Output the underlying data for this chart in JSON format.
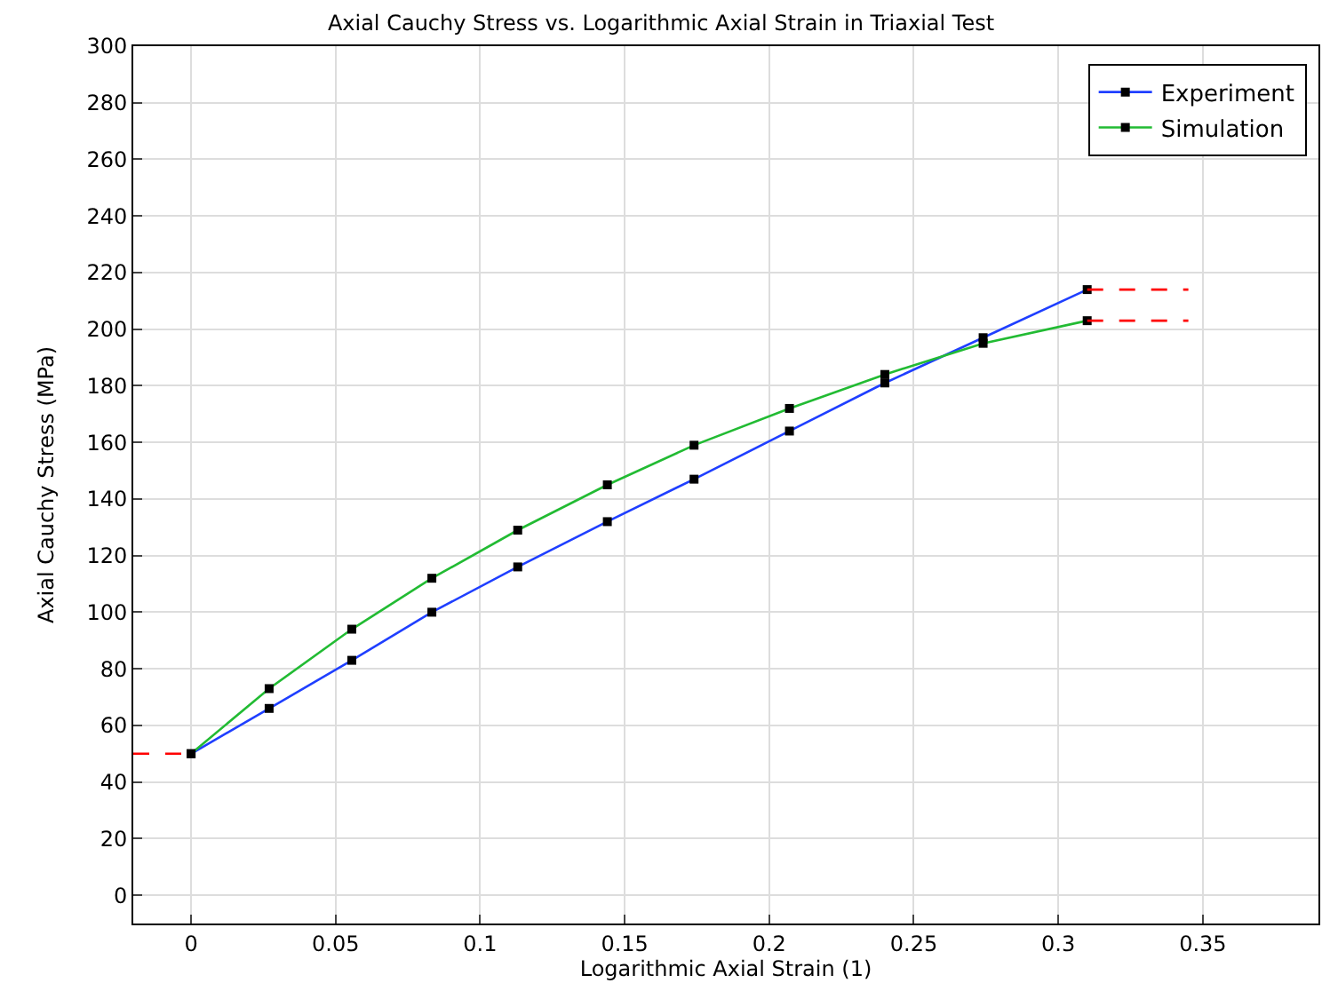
{
  "chart_data": {
    "type": "line",
    "title": "Axial Cauchy Stress vs. Logarithmic Axial Strain in Triaxial Test",
    "xlabel": "Logarithmic Axial Strain (1)",
    "ylabel": "Axial Cauchy Stress (MPa)",
    "xlim": [
      -0.02,
      0.39
    ],
    "ylim": [
      -10,
      300
    ],
    "xticks": [
      0,
      0.05,
      0.1,
      0.15,
      0.2,
      0.25,
      0.3,
      0.35
    ],
    "yticks": [
      0,
      20,
      40,
      60,
      80,
      100,
      120,
      140,
      160,
      180,
      200,
      220,
      240,
      260,
      280,
      300
    ],
    "grid": true,
    "legend": "top right",
    "marker": "square",
    "line_style": "solid",
    "series": [
      {
        "name": "Experiment",
        "color": "#1f3fff",
        "x": [
          0,
          0.027,
          0.0556,
          0.0833,
          0.113,
          0.144,
          0.174,
          0.207,
          0.24,
          0.274,
          0.31
        ],
        "values": [
          50,
          66,
          83,
          100,
          116,
          132,
          147,
          164,
          181,
          197,
          214
        ]
      },
      {
        "name": "Simulation",
        "color": "#22bb33",
        "x": [
          0,
          0.027,
          0.0556,
          0.0833,
          0.113,
          0.144,
          0.174,
          0.207,
          0.24,
          0.274,
          0.31
        ],
        "values": [
          50,
          73,
          94,
          112,
          129,
          145,
          159,
          172,
          184,
          195,
          203
        ]
      },
      {
        "color": "#ff0000",
        "x": [
          -0.02,
          0
        ],
        "values": [
          50,
          50
        ],
        "marker": "none",
        "line_style": "dashed"
      },
      {
        "color": "#ff0000",
        "x": [
          0.31,
          0.345
        ],
        "values": [
          214,
          214
        ],
        "marker": "none",
        "line_style": "dashed"
      },
      {
        "color": "#ff0000",
        "x": [
          0.31,
          0.345
        ],
        "values": [
          203,
          203
        ],
        "marker": "none",
        "line_style": "dashed"
      }
    ]
  }
}
